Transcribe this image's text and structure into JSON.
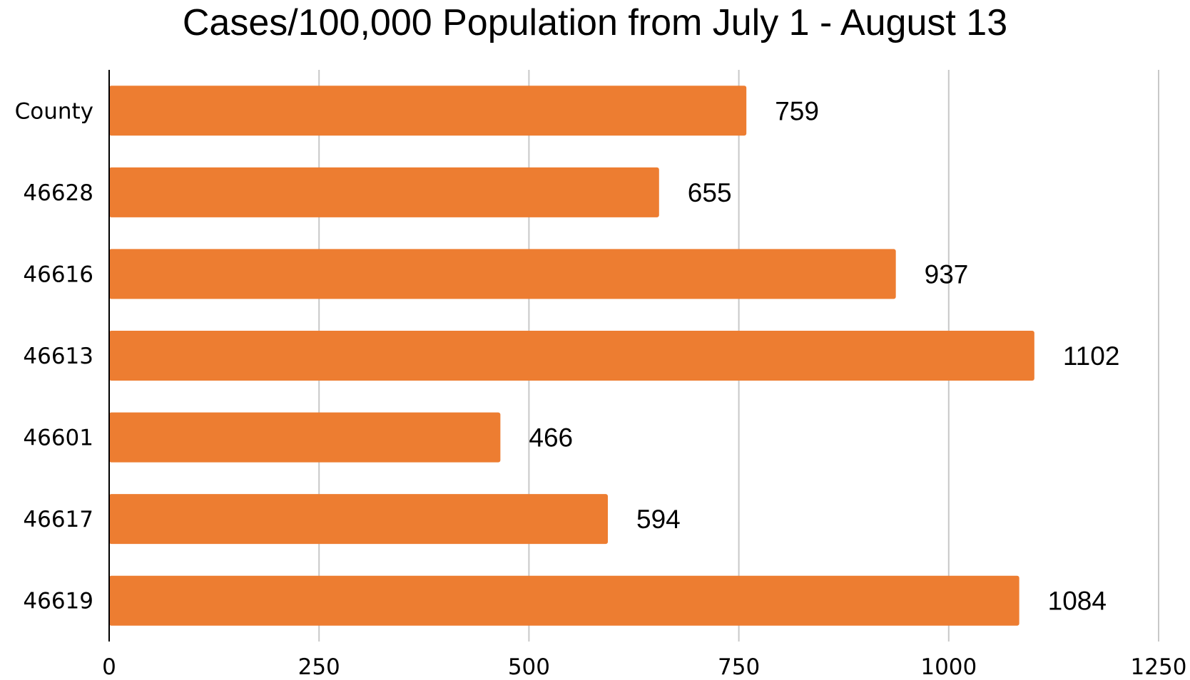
{
  "chart_data": {
    "type": "bar",
    "orientation": "horizontal",
    "title": "Cases/100,000 Population from July 1 - August 13",
    "xlabel": "",
    "ylabel": "",
    "categories": [
      "County",
      "46628",
      "46616",
      "46613",
      "46601",
      "46617",
      "46619"
    ],
    "values": [
      759,
      655,
      937,
      1102,
      466,
      594,
      1084
    ],
    "data_labels": [
      "759",
      "655",
      "937",
      "1102",
      "466",
      "594",
      "1084"
    ],
    "xlim": [
      0,
      1250
    ],
    "xticks": [
      0,
      250,
      500,
      750,
      1000,
      1250
    ],
    "xtick_labels": [
      "0",
      "250",
      "500",
      "750",
      "1000",
      "1250"
    ],
    "grid": true,
    "legend": "none",
    "bar_color": "#ED7D31",
    "grid_color": "#C8C8C8",
    "axis_color": "#000000"
  }
}
